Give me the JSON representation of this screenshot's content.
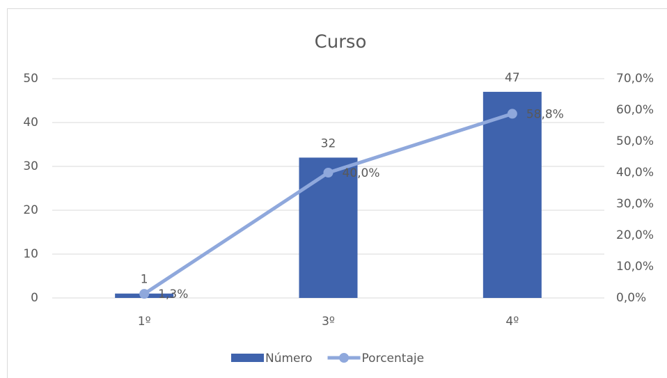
{
  "chart_data": {
    "type": "combo",
    "title": "Curso",
    "categories": [
      "1º",
      "3º",
      "4º"
    ],
    "series": [
      {
        "name": "Número",
        "type": "bar",
        "color": "#3f63ad",
        "values": [
          1,
          32,
          47
        ]
      },
      {
        "name": "Porcentaje",
        "type": "line",
        "axis": "y2",
        "color": "#8fa8dc",
        "values": [
          1.3,
          40.0,
          58.8
        ],
        "value_labels": [
          "1,3%",
          "40,0%",
          "58,8%"
        ]
      }
    ],
    "ylim": [
      0,
      50
    ],
    "yticks": [
      0,
      10,
      20,
      30,
      40,
      50
    ],
    "y2lim": [
      0,
      70
    ],
    "y2ticks": [
      {
        "value": 0,
        "label": "0,0%"
      },
      {
        "value": 10,
        "label": "10,0%"
      },
      {
        "value": 20,
        "label": "20,0%"
      },
      {
        "value": 30,
        "label": "30,0%"
      },
      {
        "value": 40,
        "label": "40,0%"
      },
      {
        "value": 50,
        "label": "50,0%"
      },
      {
        "value": 60,
        "label": "60,0%"
      },
      {
        "value": 70,
        "label": "70,0%"
      }
    ],
    "grid": true,
    "legend": "bottom"
  }
}
